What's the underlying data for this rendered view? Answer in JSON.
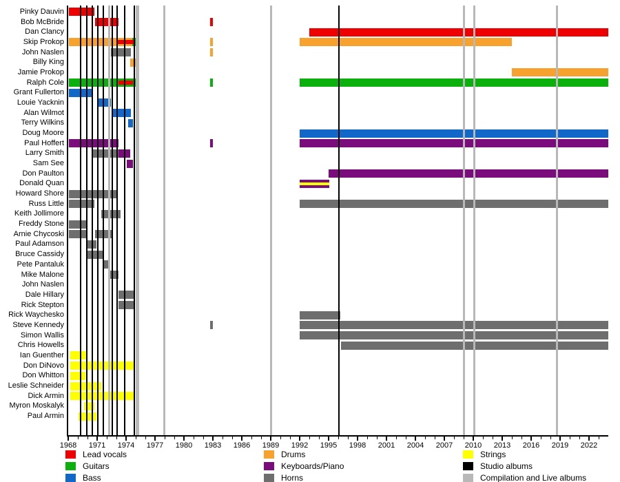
{
  "chart_data": {
    "type": "timeline",
    "x_axis": {
      "min": 1968,
      "max": 2024,
      "major_tick_labels": [
        1968,
        1971,
        1974,
        1977,
        1980,
        1983,
        1986,
        1989,
        1992,
        1995,
        1998,
        2001,
        2004,
        2007,
        2010,
        2013,
        2016,
        2019,
        2022
      ],
      "major_tick_step": 3,
      "minor_tick_step": 1,
      "grid": false
    },
    "colors": {
      "lead_vocals": "#ee0000",
      "guitars": "#0cb00c",
      "bass": "#1168c8",
      "drums": "#f7a22e",
      "keyboards": "#7b0c7b",
      "horns": "#6e6e6e",
      "strings": "#ffff00",
      "studio": "#000000",
      "compilation": "#b8b8b8"
    },
    "legend": {
      "position": "bottom",
      "columns": [
        [
          {
            "role": "lead_vocals",
            "label": "Lead vocals"
          },
          {
            "role": "guitars",
            "label": "Guitars"
          },
          {
            "role": "bass",
            "label": "Bass"
          }
        ],
        [
          {
            "role": "drums",
            "label": "Drums"
          },
          {
            "role": "keyboards",
            "label": "Keyboards/Piano"
          },
          {
            "role": "horns",
            "label": "Horns"
          }
        ],
        [
          {
            "role": "strings",
            "label": "Strings"
          },
          {
            "role": "studio",
            "label": "Studio albums"
          },
          {
            "role": "compilation",
            "label": "Compilation and Live albums"
          }
        ]
      ]
    },
    "album_lines": {
      "studio": [
        1969.3,
        1969.9,
        1970.5,
        1971.1,
        1971.65,
        1972.6,
        1973.1,
        1973.85,
        1974.85,
        1996.1
      ],
      "compilation_live": [
        {
          "year": 1972.25,
          "w": 3
        },
        {
          "year": 1975.2,
          "w": 5
        },
        {
          "year": 1977.95,
          "w": 3
        },
        {
          "year": 1989.0,
          "w": 3
        },
        {
          "year": 2009.0,
          "w": 3
        },
        {
          "year": 2010.1,
          "w": 3
        },
        {
          "year": 2018.65,
          "w": 3
        }
      ]
    },
    "members": [
      {
        "name": "Pinky Dauvin",
        "segments": [
          {
            "role": "lead_vocals",
            "start": 1968.05,
            "end": 1970.75
          }
        ]
      },
      {
        "name": "Bob McBride",
        "segments": [
          {
            "role": "lead_vocals",
            "start": 1970.75,
            "end": 1973.2
          },
          {
            "role": "lead_vocals",
            "start": 1982.7,
            "end": 1983.0
          }
        ]
      },
      {
        "name": "Dan Clancy",
        "segments": [
          {
            "role": "lead_vocals",
            "start": 1993.0,
            "end": 2024
          }
        ]
      },
      {
        "name": "Skip Prokop",
        "segments": [
          {
            "role": "drums",
            "start": 1968.05,
            "end": 1974.65
          },
          {
            "role": "guitars",
            "start": 1974.65,
            "end": 1975.0
          },
          {
            "role": "lead_vocals",
            "start": 1973.1,
            "end": 1974.8,
            "overlay": true
          },
          {
            "role": "drums",
            "start": 1982.7,
            "end": 1983.0
          },
          {
            "role": "drums",
            "start": 1992.0,
            "end": 2014.0
          }
        ]
      },
      {
        "name": "John Naslen",
        "segments": [
          {
            "role": "horns",
            "start": 1972.4,
            "end": 1974.5
          },
          {
            "role": "drums",
            "start": 1982.7,
            "end": 1983.0
          }
        ]
      },
      {
        "name": "Billy King",
        "segments": [
          {
            "role": "drums",
            "start": 1974.4,
            "end": 1975.0
          }
        ]
      },
      {
        "name": "Jamie Prokop",
        "segments": [
          {
            "role": "drums",
            "start": 2014.0,
            "end": 2024
          }
        ]
      },
      {
        "name": "Ralph Cole",
        "segments": [
          {
            "role": "guitars",
            "start": 1968.05,
            "end": 1975.0
          },
          {
            "role": "lead_vocals",
            "start": 1973.2,
            "end": 1974.75,
            "overlay": true
          },
          {
            "role": "guitars",
            "start": 1982.7,
            "end": 1983.0
          },
          {
            "role": "guitars",
            "start": 1992.0,
            "end": 2024
          }
        ]
      },
      {
        "name": "Grant Fullerton",
        "segments": [
          {
            "role": "bass",
            "start": 1968.05,
            "end": 1970.6
          }
        ]
      },
      {
        "name": "Louie Yacknin",
        "segments": [
          {
            "role": "bass",
            "start": 1971.1,
            "end": 1972.4
          }
        ]
      },
      {
        "name": "Alan Wilmot",
        "segments": [
          {
            "role": "bass",
            "start": 1972.5,
            "end": 1974.5
          }
        ]
      },
      {
        "name": "Terry Wilkins",
        "segments": [
          {
            "role": "bass",
            "start": 1974.2,
            "end": 1974.75
          }
        ]
      },
      {
        "name": "Doug Moore",
        "segments": [
          {
            "role": "bass",
            "start": 1992.0,
            "end": 2024
          }
        ]
      },
      {
        "name": "Paul Hoffert",
        "segments": [
          {
            "role": "keyboards",
            "start": 1968.05,
            "end": 1973.2
          },
          {
            "role": "keyboards",
            "start": 1982.7,
            "end": 1983.0
          },
          {
            "role": "keyboards",
            "start": 1992.0,
            "end": 2024
          }
        ]
      },
      {
        "name": "Larry Smith",
        "segments": [
          {
            "role": "horns",
            "start": 1970.6,
            "end": 1973.2
          },
          {
            "role": "keyboards",
            "start": 1973.2,
            "end": 1974.4
          }
        ]
      },
      {
        "name": "Sam See",
        "segments": [
          {
            "role": "keyboards",
            "start": 1974.05,
            "end": 1974.7
          }
        ]
      },
      {
        "name": "Don Paulton",
        "segments": [
          {
            "role": "keyboards",
            "start": 1995.0,
            "end": 2024
          }
        ]
      },
      {
        "name": "Donald Quan",
        "segments": [
          {
            "role": "keyboards_strings",
            "start": 1992.0,
            "end": 1995.1
          }
        ]
      },
      {
        "name": "Howard Shore",
        "segments": [
          {
            "role": "horns",
            "start": 1968.05,
            "end": 1973.05
          }
        ]
      },
      {
        "name": "Russ Little",
        "segments": [
          {
            "role": "horns",
            "start": 1968.05,
            "end": 1970.75
          },
          {
            "role": "horns",
            "start": 1992.0,
            "end": 2024
          }
        ]
      },
      {
        "name": "Keith Jollimore",
        "segments": [
          {
            "role": "horns",
            "start": 1971.45,
            "end": 1973.45
          }
        ]
      },
      {
        "name": "Freddy Stone",
        "segments": [
          {
            "role": "horns",
            "start": 1968.05,
            "end": 1969.85
          }
        ]
      },
      {
        "name": "Arnie Chycoski",
        "segments": [
          {
            "role": "horns",
            "start": 1968.05,
            "end": 1970.0
          },
          {
            "role": "horns",
            "start": 1970.8,
            "end": 1972.5
          }
        ]
      },
      {
        "name": "Paul Adamson",
        "segments": [
          {
            "role": "horns",
            "start": 1970.0,
            "end": 1970.9
          }
        ]
      },
      {
        "name": "Bruce Cassidy",
        "segments": [
          {
            "role": "horns",
            "start": 1970.0,
            "end": 1971.65
          }
        ]
      },
      {
        "name": "Pete Pantaluk",
        "segments": [
          {
            "role": "horns",
            "start": 1971.55,
            "end": 1972.2
          }
        ]
      },
      {
        "name": "Mike Malone",
        "segments": [
          {
            "role": "horns",
            "start": 1972.15,
            "end": 1973.2
          }
        ]
      },
      {
        "name": "John Naslen",
        "segments": []
      },
      {
        "name": "Dale Hillary",
        "segments": [
          {
            "role": "horns",
            "start": 1973.2,
            "end": 1974.9
          }
        ]
      },
      {
        "name": "Rick Stepton",
        "segments": [
          {
            "role": "horns",
            "start": 1973.2,
            "end": 1974.9
          }
        ]
      },
      {
        "name": "Rick Waychesko",
        "segments": [
          {
            "role": "horns",
            "start": 1992.0,
            "end": 1996.2
          }
        ]
      },
      {
        "name": "Steve Kennedy",
        "segments": [
          {
            "role": "horns",
            "start": 1982.7,
            "end": 1983.0
          },
          {
            "role": "horns",
            "start": 1992.0,
            "end": 2024
          }
        ]
      },
      {
        "name": "Simon Wallis",
        "segments": [
          {
            "role": "horns",
            "start": 1992.0,
            "end": 2024
          }
        ]
      },
      {
        "name": "Chris Howells",
        "segments": [
          {
            "role": "horns",
            "start": 1996.25,
            "end": 2024
          }
        ]
      },
      {
        "name": "Ian Guenther",
        "segments": [
          {
            "role": "strings",
            "start": 1968.2,
            "end": 1969.85
          }
        ]
      },
      {
        "name": "Don DiNovo",
        "segments": [
          {
            "role": "strings",
            "start": 1968.2,
            "end": 1974.95
          }
        ]
      },
      {
        "name": "Don Whitton",
        "segments": [
          {
            "role": "strings",
            "start": 1968.2,
            "end": 1969.8
          }
        ]
      },
      {
        "name": "Leslie Schneider",
        "segments": [
          {
            "role": "strings",
            "start": 1968.2,
            "end": 1971.4
          }
        ]
      },
      {
        "name": "Dick Armin",
        "segments": [
          {
            "role": "strings",
            "start": 1968.2,
            "end": 1974.95
          }
        ]
      },
      {
        "name": "Myron Moskalyk",
        "segments": [
          {
            "role": "strings",
            "start": 1969.65,
            "end": 1970.7
          }
        ]
      },
      {
        "name": "Paul Armin",
        "segments": [
          {
            "role": "strings",
            "start": 1969.1,
            "end": 1970.9
          }
        ]
      }
    ]
  }
}
